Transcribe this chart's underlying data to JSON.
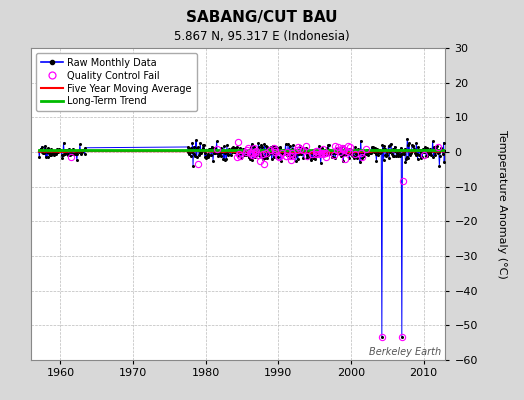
{
  "title": "SABANG/CUT BAU",
  "subtitle": "5.867 N, 95.317 E (Indonesia)",
  "ylabel": "Temperature Anomaly (°C)",
  "watermark": "Berkeley Earth",
  "xlim": [
    1956,
    2013
  ],
  "ylim": [
    -60,
    30
  ],
  "yticks": [
    30,
    20,
    10,
    0,
    -10,
    -20,
    -30,
    -40,
    -50,
    -60
  ],
  "xticks": [
    1960,
    1970,
    1980,
    1990,
    2000,
    2010
  ],
  "bg_color": "#d8d8d8",
  "plot_bg_color": "#ffffff",
  "raw_color": "#0000ff",
  "dot_color": "#000000",
  "qc_color": "#ff00ff",
  "moving_avg_color": "#ff0000",
  "trend_color": "#00bb00",
  "grid_color": "#bbbbbb",
  "spike1_year": 2004.25,
  "spike1_val": -53.5,
  "spike2_year": 2007.0,
  "spike2_val": -53.5,
  "data_start1": 1957.0,
  "data_end1": 1963.5,
  "data_start2": 1977.5,
  "data_end2": 2013.0,
  "noise_scale": 1.0,
  "dense_noise_scale": 1.5
}
